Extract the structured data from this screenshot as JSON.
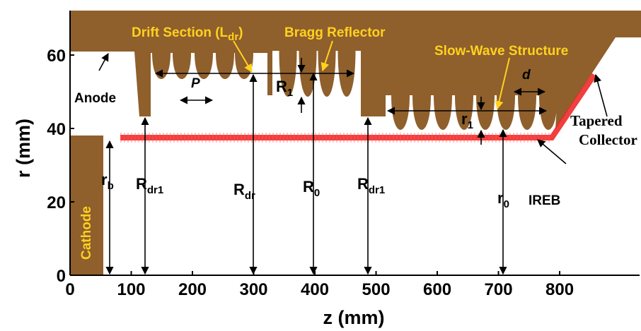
{
  "axes": {
    "xlabel": "z (mm)",
    "ylabel": "r (mm)",
    "xlim": [
      0,
      930
    ],
    "ylim": [
      0,
      72
    ],
    "xticks": [
      0,
      100,
      200,
      300,
      400,
      500,
      600,
      700,
      800
    ],
    "yticks": [
      0,
      20,
      40,
      60
    ]
  },
  "labels": {
    "anode": "Anode",
    "cathode": "Cathode",
    "drift_section": {
      "main": "Drift Section (L",
      "sub": "dr",
      "end": ")"
    },
    "bragg_reflector": "Bragg Reflector",
    "slow_wave": "Slow-Wave Structure",
    "period_p": "P",
    "period_d": "d",
    "tapered": "Tapered",
    "collector": "Collector",
    "ireb": "IREB"
  },
  "dimensions": [
    {
      "main": "r",
      "sub": "b"
    },
    {
      "main": "R",
      "sub": "dr1"
    },
    {
      "main": "R",
      "sub": "dr"
    },
    {
      "main": "R",
      "sub": "0"
    },
    {
      "main": "R",
      "sub": "dr1"
    },
    {
      "main": "r",
      "sub": "0"
    },
    {
      "main": "R",
      "sub": "1"
    },
    {
      "main": "r",
      "sub": "1"
    }
  ]
}
